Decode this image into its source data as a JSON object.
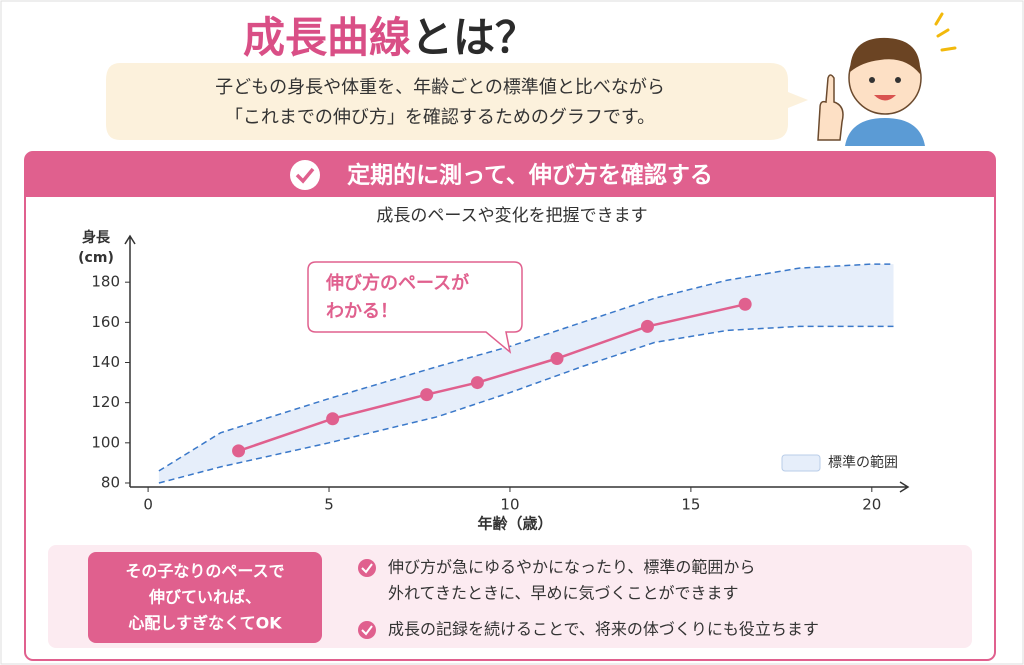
{
  "header": {
    "title_highlight": "成長曲線",
    "title_rest": "とは？",
    "bubble_lines": [
      "子どもの身長や体重を、年齢ごとの標準値と比べながら",
      "「これまでの伸び方」を確認するためのグラフです。"
    ]
  },
  "section": {
    "heading": "定期的に測って、伸び方を確認する"
  },
  "chart_data": {
    "type": "line",
    "title": "成長のペースや変化を把握できます",
    "y_label": [
      "身長",
      "(cm)"
    ],
    "x_label": "年齢（歳）",
    "xlim": [
      -0.5,
      21
    ],
    "ylim": [
      78,
      203
    ],
    "xticks": [
      0,
      5,
      10,
      15,
      20
    ],
    "yticks": [
      80,
      100,
      120,
      140,
      160,
      180
    ],
    "series": [
      {
        "name": "身長",
        "color": "#e0608e",
        "x": [
          2.5,
          5.1,
          7.7,
          9.1,
          11.3,
          13.8,
          16.5
        ],
        "values": [
          96,
          112,
          124,
          130,
          142,
          158,
          169
        ]
      }
    ],
    "band": {
      "name": "標準の範囲",
      "color": "#3a78c9",
      "fill": "#e6eefa",
      "x": [
        0.3,
        2,
        5,
        8,
        10,
        12,
        14,
        16,
        18,
        20,
        20.6
      ],
      "upper": [
        86,
        105,
        122,
        138,
        148,
        160,
        172,
        181,
        187,
        189,
        189
      ],
      "lower": [
        80,
        88,
        100,
        113,
        125,
        138,
        150,
        156,
        158,
        158,
        158
      ]
    },
    "legend": "lower right",
    "annotation": [
      "伸び方のペースが",
      "わかる！"
    ]
  },
  "footer": {
    "note_lines": [
      "その子なりのペースで",
      "伸びていれば、",
      "心配しすぎなくてOK"
    ],
    "bullets": [
      [
        "伸び方が急にゆるやかになったり、標準の範囲から",
        "外れてきたときに、早めに気づくことができます"
      ],
      [
        "成長の記録を続けることで、将来の体づくりにも役立ちます"
      ]
    ]
  }
}
